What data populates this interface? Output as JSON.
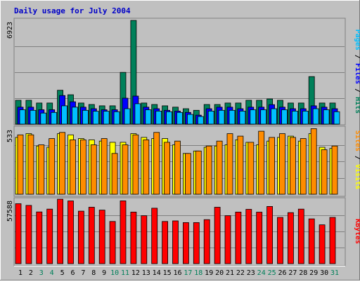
{
  "chart_data": [
    {
      "type": "bar",
      "title": "Daily usage for July 2004",
      "ymax_label": "6923",
      "ylim": [
        0,
        6923
      ],
      "categories": [
        "1",
        "2",
        "3",
        "4",
        "5",
        "6",
        "7",
        "8",
        "9",
        "10",
        "11",
        "12",
        "13",
        "14",
        "15",
        "16",
        "17",
        "18",
        "19",
        "20",
        "21",
        "22",
        "23",
        "24",
        "25",
        "26",
        "27",
        "28",
        "29",
        "30",
        "31"
      ],
      "series": [
        {
          "name": "Hits",
          "color": "#00805a",
          "values": [
            1590,
            1590,
            1410,
            1410,
            2260,
            1960,
            1410,
            1310,
            1220,
            1220,
            3450,
            6920,
            1410,
            1310,
            1220,
            1130,
            1030,
            920,
            1310,
            1310,
            1410,
            1410,
            1590,
            1590,
            1680,
            1590,
            1410,
            1410,
            3170,
            1410,
            1410
          ]
        },
        {
          "name": "Files",
          "color": "#0000ff",
          "values": [
            1130,
            1130,
            960,
            960,
            1910,
            1490,
            1130,
            1030,
            960,
            960,
            1730,
            1870,
            1130,
            1030,
            920,
            870,
            780,
            600,
            1030,
            1130,
            1130,
            1030,
            1130,
            1130,
            1300,
            1130,
            1030,
            1030,
            1220,
            1130,
            1030
          ]
        },
        {
          "name": "Pages",
          "color": "#00bfff",
          "values": [
            960,
            920,
            740,
            780,
            1220,
            1130,
            920,
            860,
            860,
            830,
            1030,
            1360,
            960,
            870,
            830,
            780,
            650,
            510,
            870,
            920,
            920,
            870,
            960,
            960,
            1030,
            960,
            870,
            870,
            1030,
            960,
            830
          ]
        }
      ],
      "right_label": {
        "parts": [
          "Pages",
          "Files",
          "Hits"
        ],
        "sep": " / "
      },
      "weekend_color": "#00805a",
      "weekend_days": [
        "3",
        "4",
        "10",
        "11",
        "17",
        "18",
        "24",
        "25",
        "31"
      ]
    },
    {
      "type": "bar",
      "ymax_label": "533",
      "ylim": [
        0,
        533
      ],
      "categories": [
        "1",
        "2",
        "3",
        "4",
        "5",
        "6",
        "7",
        "8",
        "9",
        "10",
        "11",
        "12",
        "13",
        "14",
        "15",
        "16",
        "17",
        "18",
        "19",
        "20",
        "21",
        "22",
        "23",
        "24",
        "25",
        "26",
        "27",
        "28",
        "29",
        "30",
        "31"
      ],
      "series": [
        {
          "name": "Visits",
          "color": "#ffff00",
          "values": [
            460,
            490,
            390,
            380,
            490,
            480,
            450,
            440,
            430,
            420,
            420,
            490,
            460,
            450,
            450,
            400,
            330,
            350,
            380,
            390,
            400,
            440,
            420,
            400,
            430,
            460,
            470,
            430,
            490,
            380,
            370
          ]
        },
        {
          "name": "Sites",
          "color": "#ff8c00",
          "values": [
            480,
            480,
            400,
            450,
            500,
            440,
            440,
            400,
            450,
            330,
            400,
            480,
            440,
            500,
            420,
            430,
            330,
            350,
            390,
            430,
            490,
            470,
            420,
            510,
            460,
            490,
            460,
            450,
            530,
            360,
            390
          ]
        }
      ],
      "right_label": {
        "parts": [
          "Sites",
          "Visits"
        ],
        "sep": " / "
      }
    },
    {
      "type": "bar",
      "ymax_label": "57588",
      "ylim": [
        0,
        57588
      ],
      "categories": [
        "1",
        "2",
        "3",
        "4",
        "5",
        "6",
        "7",
        "8",
        "9",
        "10",
        "11",
        "12",
        "13",
        "14",
        "15",
        "16",
        "17",
        "18",
        "19",
        "20",
        "21",
        "22",
        "23",
        "24",
        "25",
        "26",
        "27",
        "28",
        "29",
        "30",
        "31"
      ],
      "series": [
        {
          "name": "KBytes",
          "color": "#ff0000",
          "values": [
            53500,
            52000,
            46200,
            48700,
            57500,
            56000,
            46900,
            50400,
            47800,
            37700,
            56100,
            46100,
            42800,
            49500,
            37700,
            38200,
            36700,
            36700,
            39300,
            50400,
            42800,
            46100,
            48500,
            46000,
            51100,
            41300,
            45600,
            48700,
            40000,
            34700,
            41300
          ]
        }
      ],
      "right_label": {
        "parts": [
          "KBytes"
        ],
        "sep": ""
      }
    }
  ]
}
